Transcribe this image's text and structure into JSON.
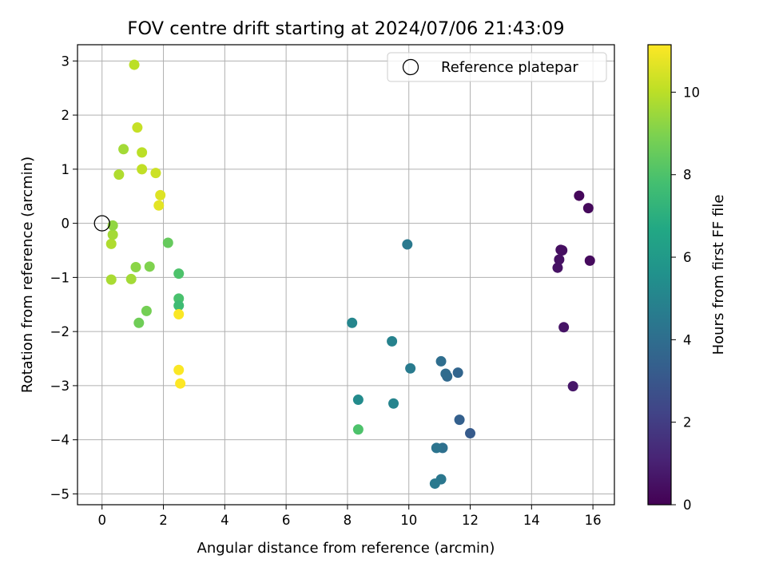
{
  "chart_data": {
    "type": "scatter",
    "title": "FOV centre drift starting at 2024/07/06 21:43:09",
    "xlabel": "Angular distance from reference (arcmin)",
    "ylabel": "Rotation from reference (arcmin)",
    "xlim": [
      -0.8,
      16.7
    ],
    "ylim": [
      -5.2,
      3.3
    ],
    "xticks": [
      0,
      2,
      4,
      6,
      8,
      10,
      12,
      14,
      16
    ],
    "yticks": [
      -5,
      -4,
      -3,
      -2,
      -1,
      0,
      1,
      2,
      3
    ],
    "grid": true,
    "legend": {
      "location": "top-right",
      "entries": [
        "Reference platepar"
      ]
    },
    "reference_point": {
      "x": 0,
      "y": 0,
      "marker": "hollow-circle",
      "label": "Reference platepar"
    },
    "colorbar": {
      "label": "Hours from first FF file",
      "colormap": "viridis",
      "range": [
        0,
        11.15
      ],
      "ticks": [
        0,
        2,
        4,
        6,
        8,
        10
      ]
    },
    "points": [
      {
        "x": 15.55,
        "y": 0.51,
        "hours": 0.2
      },
      {
        "x": 15.85,
        "y": 0.28,
        "hours": 0.25
      },
      {
        "x": 14.95,
        "y": -0.49,
        "hours": 0.4
      },
      {
        "x": 15.0,
        "y": -0.5,
        "hours": 0.45
      },
      {
        "x": 14.9,
        "y": -0.67,
        "hours": 0.5
      },
      {
        "x": 14.85,
        "y": -0.82,
        "hours": 0.55
      },
      {
        "x": 15.9,
        "y": -0.69,
        "hours": 0.3
      },
      {
        "x": 15.05,
        "y": -1.92,
        "hours": 0.6
      },
      {
        "x": 15.35,
        "y": -3.01,
        "hours": 0.7
      },
      {
        "x": 12.0,
        "y": -3.88,
        "hours": 3.2
      },
      {
        "x": 11.65,
        "y": -3.63,
        "hours": 3.4
      },
      {
        "x": 11.6,
        "y": -2.76,
        "hours": 3.6
      },
      {
        "x": 11.25,
        "y": -2.83,
        "hours": 3.8
      },
      {
        "x": 11.2,
        "y": -2.78,
        "hours": 3.9
      },
      {
        "x": 11.05,
        "y": -2.55,
        "hours": 4.0
      },
      {
        "x": 11.1,
        "y": -4.15,
        "hours": 4.1
      },
      {
        "x": 10.9,
        "y": -4.15,
        "hours": 4.3
      },
      {
        "x": 11.05,
        "y": -4.73,
        "hours": 4.4
      },
      {
        "x": 10.85,
        "y": -4.81,
        "hours": 4.5
      },
      {
        "x": 10.05,
        "y": -2.68,
        "hours": 4.6
      },
      {
        "x": 9.95,
        "y": -0.39,
        "hours": 4.5
      },
      {
        "x": 9.45,
        "y": -2.18,
        "hours": 4.9
      },
      {
        "x": 9.5,
        "y": -3.33,
        "hours": 5.0
      },
      {
        "x": 8.15,
        "y": -1.84,
        "hours": 5.1
      },
      {
        "x": 8.35,
        "y": -3.26,
        "hours": 5.3
      },
      {
        "x": 8.35,
        "y": -3.81,
        "hours": 8.0
      },
      {
        "x": 2.5,
        "y": -0.93,
        "hours": 8.0
      },
      {
        "x": 2.5,
        "y": -1.39,
        "hours": 7.9
      },
      {
        "x": 2.5,
        "y": -1.52,
        "hours": 7.6
      },
      {
        "x": 2.15,
        "y": -0.36,
        "hours": 8.5
      },
      {
        "x": 1.45,
        "y": -1.62,
        "hours": 8.8
      },
      {
        "x": 1.2,
        "y": -1.84,
        "hours": 8.7
      },
      {
        "x": 1.55,
        "y": -0.8,
        "hours": 9.0
      },
      {
        "x": 1.1,
        "y": -0.81,
        "hours": 9.2
      },
      {
        "x": 0.95,
        "y": -1.03,
        "hours": 9.6
      },
      {
        "x": 0.3,
        "y": -1.04,
        "hours": 9.7
      },
      {
        "x": 0.3,
        "y": -0.38,
        "hours": 9.8
      },
      {
        "x": 0.35,
        "y": -0.21,
        "hours": 9.6
      },
      {
        "x": 0.35,
        "y": -0.04,
        "hours": 9.3
      },
      {
        "x": 0.55,
        "y": 0.9,
        "hours": 9.8
      },
      {
        "x": 0.7,
        "y": 1.37,
        "hours": 9.6
      },
      {
        "x": 1.3,
        "y": 1.31,
        "hours": 10.0
      },
      {
        "x": 1.3,
        "y": 1.0,
        "hours": 10.1
      },
      {
        "x": 1.15,
        "y": 1.77,
        "hours": 10.2
      },
      {
        "x": 1.05,
        "y": 2.93,
        "hours": 10.0
      },
      {
        "x": 1.75,
        "y": 0.93,
        "hours": 10.3
      },
      {
        "x": 1.9,
        "y": 0.52,
        "hours": 10.6
      },
      {
        "x": 1.85,
        "y": 0.33,
        "hours": 10.7
      },
      {
        "x": 2.5,
        "y": -1.68,
        "hours": 11.1
      },
      {
        "x": 2.5,
        "y": -2.71,
        "hours": 11.1
      },
      {
        "x": 2.55,
        "y": -2.96,
        "hours": 11.15
      }
    ]
  }
}
